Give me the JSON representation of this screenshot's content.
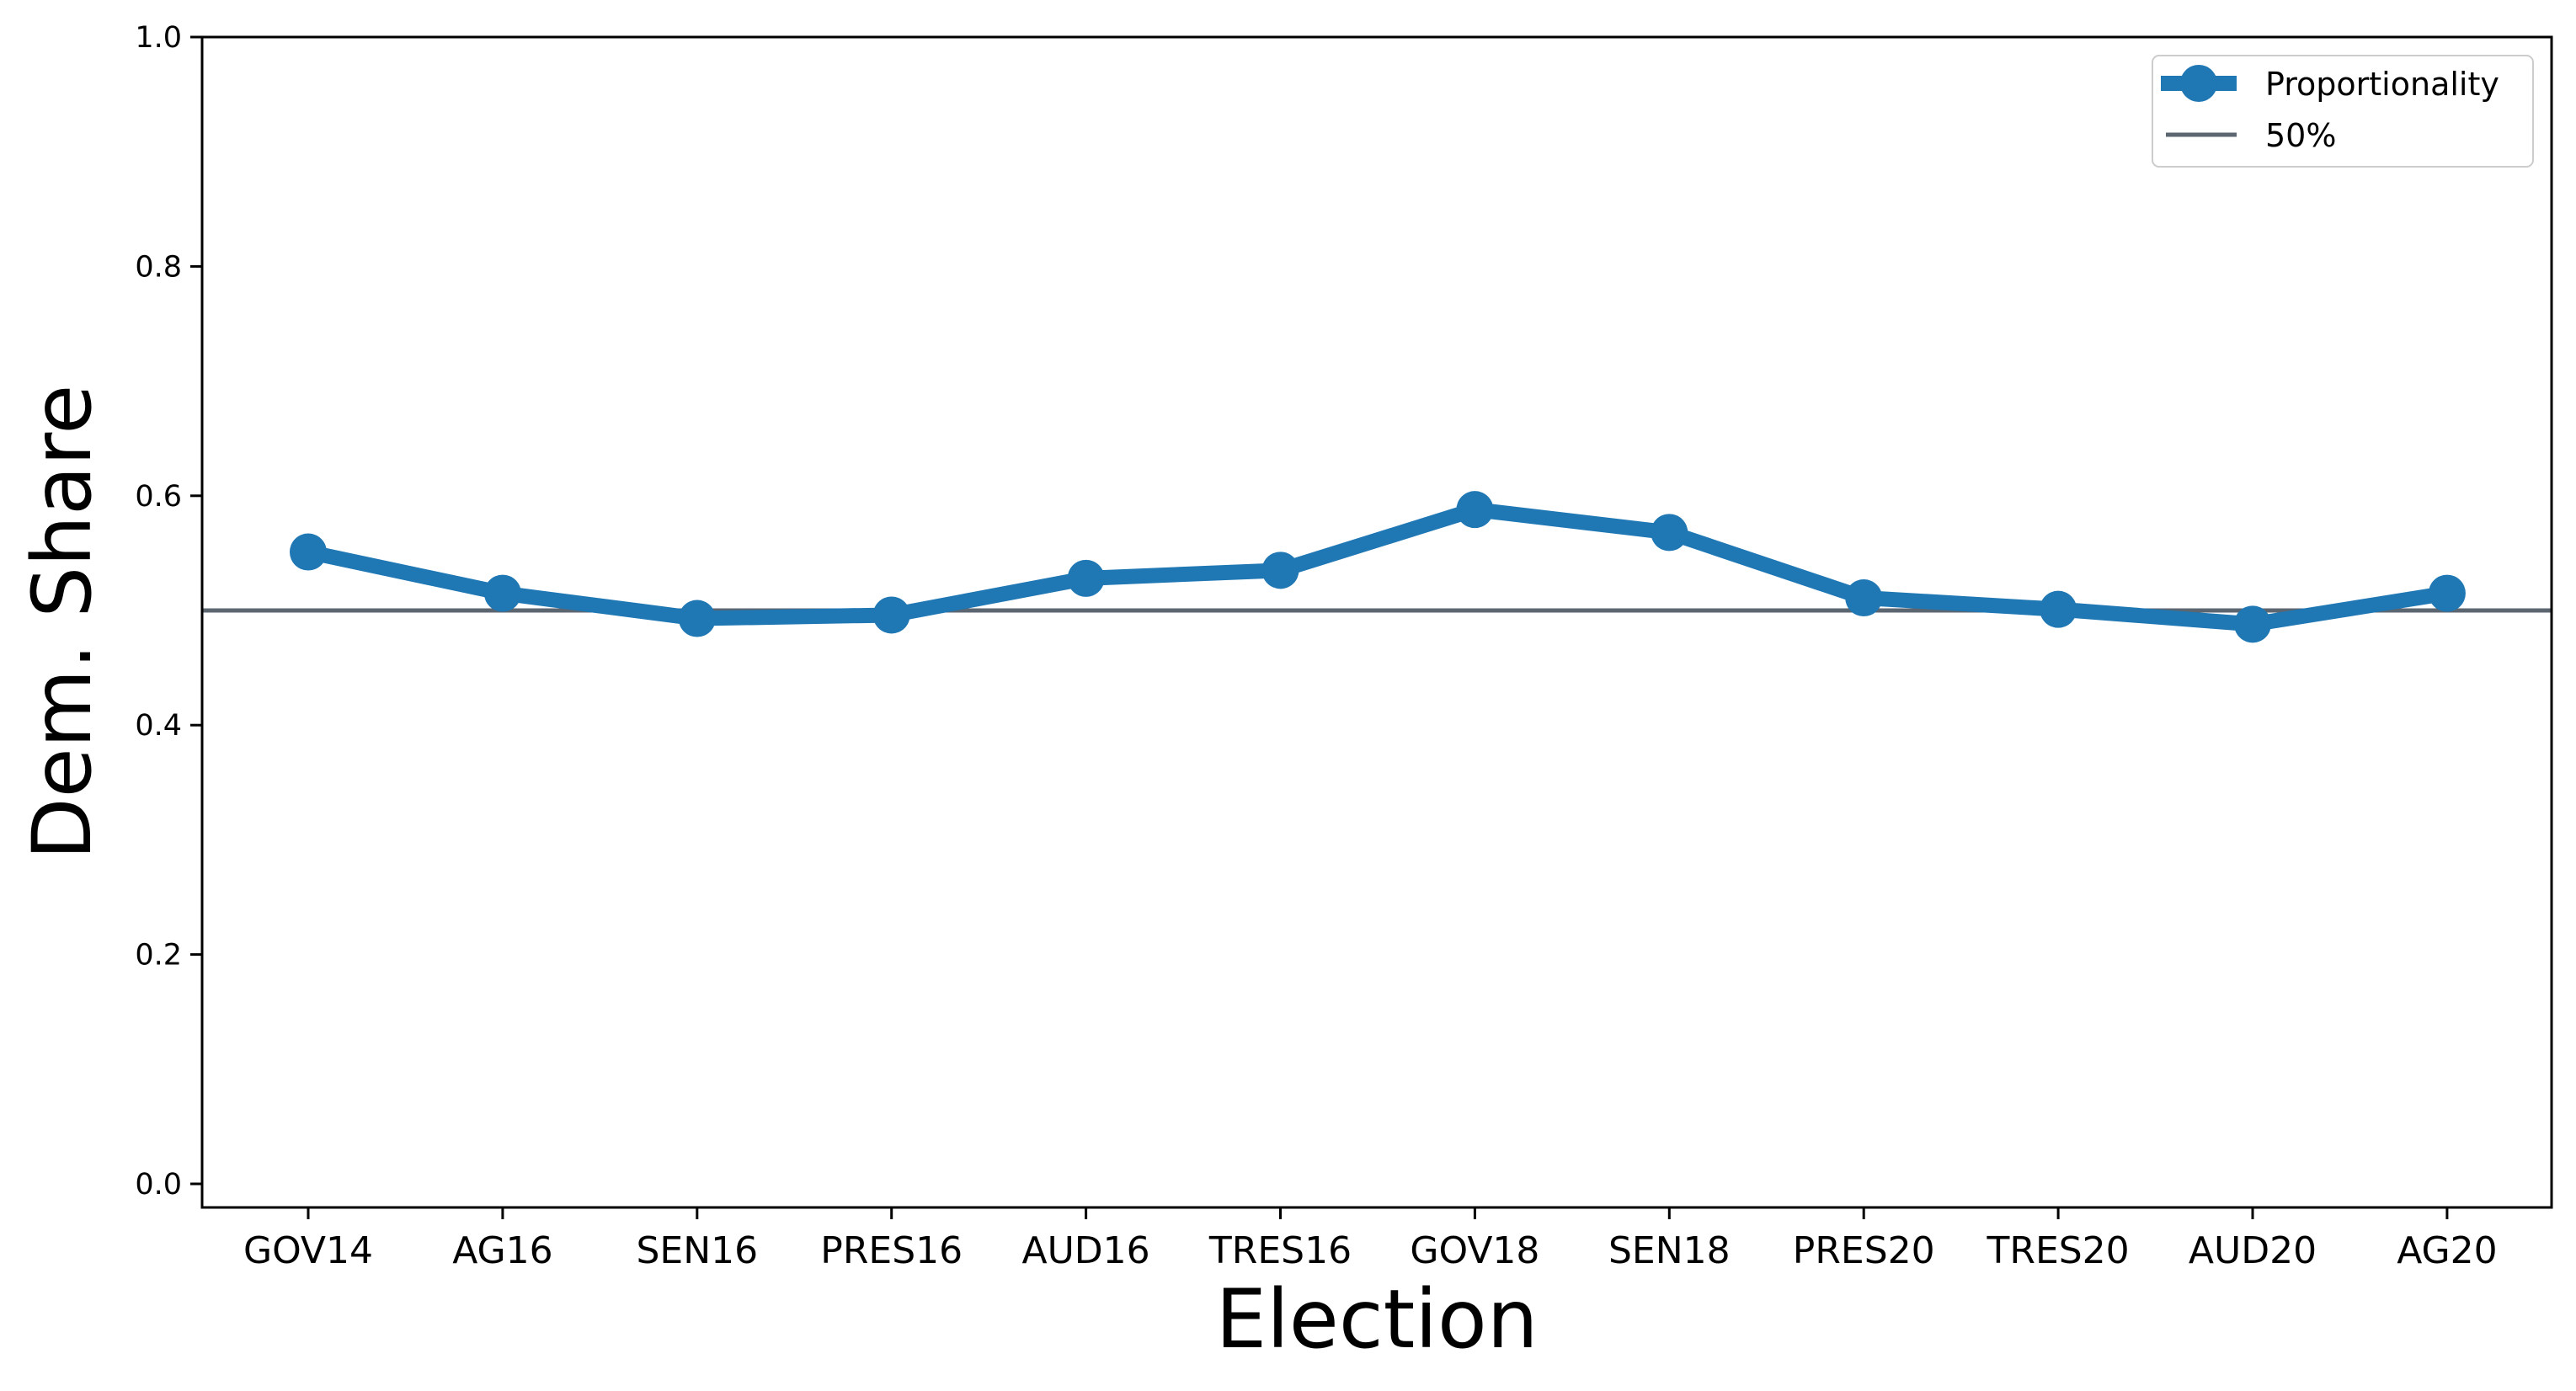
{
  "chart_data": {
    "type": "line",
    "title": "",
    "xlabel": "Election",
    "ylabel": "Dem. Share",
    "categories": [
      "GOV14",
      "AG16",
      "SEN16",
      "PRES16",
      "AUD16",
      "TRES16",
      "GOV18",
      "SEN18",
      "PRES20",
      "TRES20",
      "AUD20",
      "AG20"
    ],
    "series": [
      {
        "name": "Proportionality",
        "color": "#1f77b4",
        "marker": "circle",
        "values": [
          0.551,
          0.515,
          0.493,
          0.496,
          0.528,
          0.535,
          0.588,
          0.568,
          0.511,
          0.501,
          0.488,
          0.515
        ]
      }
    ],
    "reference_lines": [
      {
        "name": "50%",
        "value": 0.5,
        "color": "#5c6670"
      }
    ],
    "ylim": [
      0.0,
      1.0
    ],
    "yticks": [
      "0.0",
      "0.2",
      "0.4",
      "0.6",
      "0.8",
      "1.0"
    ],
    "ytick_values": [
      0.0,
      0.2,
      0.4,
      0.6,
      0.8,
      1.0
    ],
    "grid": false,
    "legend": {
      "position": "top-right",
      "entries": [
        "Proportionality",
        "50%"
      ]
    }
  }
}
